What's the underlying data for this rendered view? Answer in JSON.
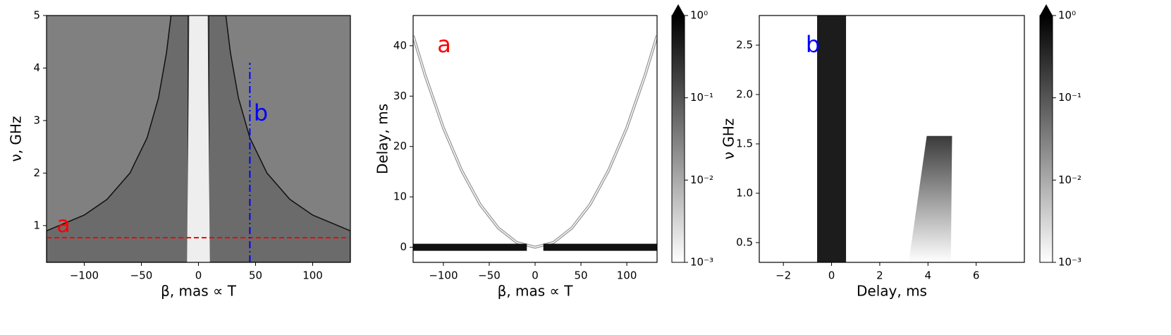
{
  "chart_data": [
    {
      "type": "heatmap",
      "xlabel": "β, mas ∝ T",
      "ylabel": "ν, GHz",
      "xlim": [
        -133,
        133
      ],
      "ylim": [
        0.3,
        5
      ],
      "xticks": [
        {
          "value": -100,
          "label": "−100"
        },
        {
          "value": -50,
          "label": "−50"
        },
        0,
        50,
        100
      ],
      "yticks": [
        1,
        2,
        3,
        4,
        5
      ],
      "background": "#808080",
      "polygons": [
        {
          "x": [
            -133,
            -100,
            -80,
            -60,
            -45,
            -35,
            -28,
            -24,
            -9,
            -9,
            -133
          ],
          "values": [
            0.9,
            1.2,
            1.5,
            2.0,
            2.67,
            3.43,
            4.29,
            5,
            5,
            0.3,
            0.3
          ],
          "color": "#6b6b6b",
          "edge": "#111111"
        },
        {
          "x": [
            133,
            100,
            80,
            60,
            45,
            35,
            28,
            24,
            9,
            9,
            133
          ],
          "values": [
            0.9,
            1.2,
            1.5,
            2.0,
            2.67,
            3.43,
            4.29,
            5,
            5,
            0.3,
            0.3
          ],
          "color": "#6b6b6b",
          "edge": "#111111"
        },
        {
          "x": [
            -10,
            10,
            8,
            -8
          ],
          "values": [
            0.3,
            0.3,
            5,
            5
          ],
          "color": "#eeeeee"
        }
      ],
      "lines": [
        {
          "x": [
            -133,
            133
          ],
          "values": [
            0.77,
            0.77
          ],
          "color": "#ff0000",
          "style": "dashed"
        },
        {
          "x": [
            45,
            45
          ],
          "values": [
            0.3,
            4.1
          ],
          "color": "#0000ff",
          "style": "dashdot"
        }
      ],
      "annotations": [
        {
          "text": "a",
          "color": "#ff0000"
        },
        {
          "text": "b",
          "color": "#0000ff"
        }
      ]
    },
    {
      "type": "heatmap",
      "xlabel": "β, mas ∝ T",
      "ylabel": "Delay, ms",
      "xlim": [
        -133,
        133
      ],
      "ylim": [
        -3,
        46
      ],
      "xticks": [
        {
          "value": -100,
          "label": "−100"
        },
        {
          "value": -50,
          "label": "−50"
        },
        0,
        50,
        100
      ],
      "yticks": [
        0,
        10,
        20,
        30,
        40
      ],
      "background": "#ffffff",
      "polygons": [],
      "lines": [
        {
          "x": [
            -133,
            -120,
            -100,
            -80,
            -60,
            -40,
            -20,
            0,
            20,
            40,
            60,
            80,
            100,
            120,
            133
          ],
          "values": [
            42,
            34.2,
            23.7,
            15.2,
            8.5,
            3.8,
            0.95,
            0,
            0.95,
            3.8,
            8.5,
            15.2,
            23.7,
            34.2,
            42
          ],
          "color": "#999999",
          "style": "double"
        },
        {
          "x": [
            -133,
            -9
          ],
          "values": [
            0,
            0
          ],
          "color": "#111111",
          "style": "band"
        },
        {
          "x": [
            9,
            133
          ],
          "values": [
            0,
            0
          ],
          "color": "#111111",
          "style": "band"
        }
      ],
      "annotations": [
        {
          "text": "a",
          "color": "#ff0000"
        }
      ],
      "colorbar": {
        "lim": [
          0.001,
          1
        ],
        "log": true,
        "colors": [
          "#ffffff",
          "#000000"
        ],
        "ticks": [
          {
            "value": 0.001,
            "label": "10⁻³"
          },
          {
            "value": 0.01,
            "label": "10⁻²"
          },
          {
            "value": 0.1,
            "label": "10⁻¹"
          },
          {
            "value": 1,
            "label": "10⁰"
          }
        ]
      }
    },
    {
      "type": "heatmap",
      "xlabel": "Delay, ms",
      "ylabel": "ν GHz",
      "xlim": [
        -3,
        8
      ],
      "ylim": [
        0.3,
        2.8
      ],
      "xticks": [
        {
          "value": -2,
          "label": "−2"
        },
        0,
        2,
        4,
        6
      ],
      "yticks": [
        0.5,
        {
          "value": 1,
          "label": "1.0"
        },
        1.5,
        {
          "value": 2,
          "label": "2.0"
        },
        2.5
      ],
      "background": "#ffffff",
      "polygons": [
        {
          "x": [
            -0.6,
            0.6,
            0.6,
            -0.6
          ],
          "values": [
            0.3,
            0.3,
            2.8,
            2.8
          ],
          "color": "#1c1c1c"
        },
        {
          "x": [
            3.2,
            3.95,
            5.0,
            4.95
          ],
          "values": [
            0.3,
            1.58,
            1.58,
            0.3
          ],
          "color": "#3a3a3a",
          "fade": true
        }
      ],
      "lines": [],
      "annotations": [
        {
          "text": "b",
          "color": "#0000ff"
        }
      ],
      "colorbar": {
        "lim": [
          0.001,
          1
        ],
        "log": true,
        "colors": [
          "#ffffff",
          "#000000"
        ],
        "ticks": [
          {
            "value": 0.001,
            "label": "10⁻³"
          },
          {
            "value": 0.01,
            "label": "10⁻²"
          },
          {
            "value": 0.1,
            "label": "10⁻¹"
          },
          {
            "value": 1,
            "label": "10⁰"
          }
        ]
      }
    }
  ]
}
